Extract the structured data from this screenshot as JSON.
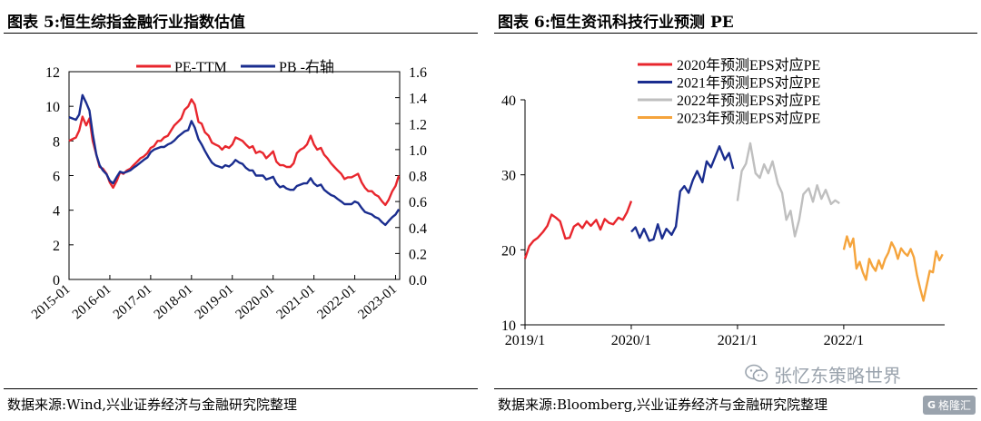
{
  "left": {
    "title": "图表 5:恒生综指金融行业指数估值",
    "source": "数据来源:Wind,兴业证券经济与金融研究院整理"
  },
  "right": {
    "title": "图表 6:恒生资讯科技行业预测 PE",
    "source": "数据来源:Bloomberg,兴业证券经济与金融研究院整理"
  },
  "watermark": {
    "text": "张忆东策略世界",
    "icon": "wechat-icon"
  },
  "brand": {
    "text": "格隆汇",
    "icon": "G"
  },
  "chart_data": [
    {
      "type": "line",
      "x_ticks": [
        "2015-01",
        "2016-01",
        "2017-01",
        "2018-01",
        "2019-01",
        "2020-01",
        "2021-01",
        "2022-01",
        "2023-01"
      ],
      "xlim": [
        2015.0,
        2023.1
      ],
      "ylim_left": [
        0,
        12
      ],
      "y_ticks_left": [
        "0",
        "2",
        "4",
        "6",
        "8",
        "10",
        "12"
      ],
      "ylim_right": [
        0,
        1.6
      ],
      "y_ticks_right": [
        "0.0",
        "0.2",
        "0.4",
        "0.6",
        "0.8",
        "1.0",
        "1.2",
        "1.4",
        "1.6"
      ],
      "legend": {
        "placement": "top-center",
        "entries": [
          "PE-TTM",
          "PB -右轴"
        ]
      },
      "grid": false,
      "series": [
        {
          "name": "PE-TTM",
          "axis": "left",
          "color": "#e8262d",
          "x": [
            2015.0,
            2015.08,
            2015.17,
            2015.25,
            2015.33,
            2015.42,
            2015.5,
            2015.58,
            2015.67,
            2015.75,
            2015.83,
            2015.92,
            2016.0,
            2016.08,
            2016.17,
            2016.25,
            2016.33,
            2016.42,
            2016.5,
            2016.58,
            2016.67,
            2016.75,
            2016.83,
            2016.92,
            2017.0,
            2017.08,
            2017.17,
            2017.25,
            2017.33,
            2017.42,
            2017.5,
            2017.58,
            2017.67,
            2017.75,
            2017.83,
            2017.92,
            2018.0,
            2018.08,
            2018.17,
            2018.25,
            2018.33,
            2018.42,
            2018.5,
            2018.58,
            2018.67,
            2018.75,
            2018.83,
            2018.92,
            2019.0,
            2019.08,
            2019.17,
            2019.25,
            2019.33,
            2019.42,
            2019.5,
            2019.58,
            2019.67,
            2019.75,
            2019.83,
            2019.92,
            2020.0,
            2020.08,
            2020.17,
            2020.25,
            2020.33,
            2020.42,
            2020.5,
            2020.58,
            2020.67,
            2020.75,
            2020.83,
            2020.92,
            2021.0,
            2021.08,
            2021.17,
            2021.25,
            2021.33,
            2021.42,
            2021.5,
            2021.58,
            2021.67,
            2021.75,
            2021.83,
            2021.92,
            2022.0,
            2022.08,
            2022.17,
            2022.25,
            2022.33,
            2022.42,
            2022.5,
            2022.58,
            2022.67,
            2022.75,
            2022.83,
            2022.92,
            2023.0,
            2023.08
          ],
          "values": [
            8.0,
            8.1,
            8.2,
            8.6,
            9.4,
            8.9,
            9.3,
            8.0,
            7.2,
            6.5,
            6.4,
            6.1,
            5.6,
            5.3,
            5.7,
            6.2,
            6.1,
            6.3,
            6.4,
            6.6,
            6.8,
            7.0,
            7.1,
            7.3,
            7.6,
            7.7,
            8.0,
            8.0,
            8.2,
            8.3,
            8.6,
            8.9,
            9.1,
            9.3,
            9.8,
            10.0,
            10.4,
            10.1,
            9.1,
            9.0,
            8.5,
            8.3,
            7.9,
            7.8,
            7.7,
            7.5,
            7.7,
            7.6,
            7.8,
            8.2,
            8.1,
            8.0,
            7.8,
            7.6,
            7.7,
            7.3,
            7.4,
            7.3,
            7.0,
            7.2,
            7.4,
            6.8,
            6.6,
            6.6,
            6.5,
            6.5,
            6.7,
            7.3,
            7.5,
            7.6,
            7.8,
            8.3,
            7.8,
            7.5,
            7.6,
            7.2,
            7.0,
            6.7,
            6.5,
            6.3,
            6.1,
            5.8,
            5.9,
            5.9,
            6.0,
            6.1,
            5.6,
            5.3,
            5.1,
            5.1,
            4.9,
            4.8,
            4.5,
            4.3,
            4.6,
            5.1,
            5.4,
            6.0
          ]
        },
        {
          "name": "PB -右轴",
          "axis": "right",
          "color": "#1a2d8f",
          "x": [
            2015.0,
            2015.08,
            2015.17,
            2015.25,
            2015.33,
            2015.42,
            2015.5,
            2015.58,
            2015.67,
            2015.75,
            2015.83,
            2015.92,
            2016.0,
            2016.08,
            2016.17,
            2016.25,
            2016.33,
            2016.42,
            2016.5,
            2016.58,
            2016.67,
            2016.75,
            2016.83,
            2016.92,
            2017.0,
            2017.08,
            2017.17,
            2017.25,
            2017.33,
            2017.42,
            2017.5,
            2017.58,
            2017.67,
            2017.75,
            2017.83,
            2017.92,
            2018.0,
            2018.08,
            2018.17,
            2018.25,
            2018.33,
            2018.42,
            2018.5,
            2018.58,
            2018.67,
            2018.75,
            2018.83,
            2018.92,
            2019.0,
            2019.08,
            2019.17,
            2019.25,
            2019.33,
            2019.42,
            2019.5,
            2019.58,
            2019.67,
            2019.75,
            2019.83,
            2019.92,
            2020.0,
            2020.08,
            2020.17,
            2020.25,
            2020.33,
            2020.42,
            2020.5,
            2020.58,
            2020.67,
            2020.75,
            2020.83,
            2020.92,
            2021.0,
            2021.08,
            2021.17,
            2021.25,
            2021.33,
            2021.42,
            2021.5,
            2021.58,
            2021.67,
            2021.75,
            2021.83,
            2021.92,
            2022.0,
            2022.08,
            2022.17,
            2022.25,
            2022.33,
            2022.42,
            2022.5,
            2022.58,
            2022.67,
            2022.75,
            2022.83,
            2022.92,
            2023.0,
            2023.08
          ],
          "values": [
            1.25,
            1.24,
            1.23,
            1.27,
            1.42,
            1.36,
            1.3,
            1.12,
            0.96,
            0.88,
            0.84,
            0.81,
            0.76,
            0.74,
            0.79,
            0.83,
            0.82,
            0.83,
            0.84,
            0.86,
            0.88,
            0.9,
            0.92,
            0.94,
            0.98,
            1.0,
            1.01,
            1.02,
            1.02,
            1.04,
            1.05,
            1.07,
            1.1,
            1.12,
            1.14,
            1.15,
            1.22,
            1.17,
            1.08,
            1.04,
            0.99,
            0.94,
            0.9,
            0.88,
            0.87,
            0.86,
            0.88,
            0.87,
            0.89,
            0.92,
            0.9,
            0.89,
            0.86,
            0.84,
            0.84,
            0.8,
            0.8,
            0.8,
            0.77,
            0.78,
            0.79,
            0.74,
            0.71,
            0.72,
            0.7,
            0.69,
            0.69,
            0.72,
            0.73,
            0.74,
            0.74,
            0.78,
            0.74,
            0.72,
            0.73,
            0.69,
            0.67,
            0.65,
            0.64,
            0.62,
            0.6,
            0.58,
            0.58,
            0.58,
            0.6,
            0.59,
            0.55,
            0.52,
            0.51,
            0.5,
            0.48,
            0.47,
            0.44,
            0.42,
            0.45,
            0.48,
            0.5,
            0.54
          ]
        }
      ]
    },
    {
      "type": "line",
      "x_ticks": [
        "2019/1",
        "2020/1",
        "2021/1",
        "2022/1"
      ],
      "xlim": [
        2019.0,
        2022.95
      ],
      "ylim": [
        10,
        40
      ],
      "y_ticks": [
        "10",
        "20",
        "30",
        "40"
      ],
      "legend": {
        "placement": "top-left",
        "entries": [
          "2020年预测EPS对应PE",
          "2021年预测EPS对应PE",
          "2022年预测EPS对应PE",
          "2023年预测EPS对应PE"
        ]
      },
      "grid": false,
      "series": [
        {
          "name": "2020年预测EPS对应PE",
          "color": "#e8262d",
          "x": [
            2019.0,
            2019.04,
            2019.08,
            2019.12,
            2019.17,
            2019.21,
            2019.25,
            2019.29,
            2019.33,
            2019.38,
            2019.42,
            2019.46,
            2019.5,
            2019.54,
            2019.58,
            2019.62,
            2019.67,
            2019.71,
            2019.75,
            2019.79,
            2019.83,
            2019.88,
            2019.92,
            2019.96,
            2020.0
          ],
          "values": [
            18.8,
            20.5,
            21.2,
            21.6,
            22.4,
            23.2,
            24.7,
            24.3,
            23.8,
            21.5,
            21.6,
            23.1,
            23.5,
            22.9,
            23.8,
            23.2,
            24.0,
            22.7,
            24.1,
            23.6,
            23.4,
            24.3,
            24.0,
            25.0,
            26.5
          ]
        },
        {
          "name": "2021年预测EPS对应PE",
          "color": "#1a2d8f",
          "x": [
            2020.0,
            2020.04,
            2020.08,
            2020.12,
            2020.17,
            2020.21,
            2020.25,
            2020.29,
            2020.33,
            2020.38,
            2020.42,
            2020.46,
            2020.5,
            2020.54,
            2020.58,
            2020.62,
            2020.67,
            2020.71,
            2020.75,
            2020.79,
            2020.83,
            2020.88,
            2020.92,
            2020.96
          ],
          "values": [
            22.4,
            23.0,
            21.6,
            22.8,
            21.2,
            21.4,
            23.4,
            21.5,
            22.8,
            22.0,
            23.1,
            27.8,
            28.5,
            27.6,
            29.3,
            30.5,
            29.0,
            31.8,
            31.0,
            32.4,
            33.8,
            32.0,
            32.9,
            30.8
          ]
        },
        {
          "name": "2022年预测EPS对应PE",
          "color": "#bfbfbf",
          "x": [
            2021.0,
            2021.04,
            2021.08,
            2021.12,
            2021.17,
            2021.21,
            2021.25,
            2021.29,
            2021.33,
            2021.38,
            2021.42,
            2021.46,
            2021.5,
            2021.54,
            2021.58,
            2021.62,
            2021.67,
            2021.71,
            2021.75,
            2021.79,
            2021.83,
            2021.88,
            2021.92,
            2021.96
          ],
          "values": [
            26.5,
            30.5,
            31.5,
            34.2,
            30.2,
            29.6,
            31.4,
            30.2,
            31.8,
            28.8,
            27.6,
            24.0,
            25.2,
            21.8,
            24.0,
            27.4,
            28.2,
            26.4,
            28.6,
            26.8,
            28.0,
            26.1,
            26.6,
            26.2
          ]
        },
        {
          "name": "2023年预测EPS对应PE",
          "color": "#f5a43c",
          "x": [
            2022.0,
            2022.03,
            2022.06,
            2022.09,
            2022.12,
            2022.15,
            2022.18,
            2022.21,
            2022.24,
            2022.27,
            2022.3,
            2022.33,
            2022.36,
            2022.39,
            2022.42,
            2022.45,
            2022.48,
            2022.51,
            2022.54,
            2022.57,
            2022.6,
            2022.63,
            2022.66,
            2022.69,
            2022.72,
            2022.75,
            2022.78,
            2022.81,
            2022.84,
            2022.87,
            2022.9,
            2022.93
          ],
          "values": [
            20.0,
            21.8,
            20.4,
            21.5,
            17.5,
            18.4,
            17.0,
            16.0,
            18.8,
            17.8,
            17.2,
            18.6,
            17.5,
            18.8,
            19.6,
            21.0,
            20.2,
            18.8,
            20.2,
            19.6,
            19.2,
            20.1,
            19.0,
            16.6,
            14.8,
            13.2,
            15.2,
            17.2,
            17.0,
            19.8,
            18.6,
            19.4
          ]
        }
      ]
    }
  ]
}
